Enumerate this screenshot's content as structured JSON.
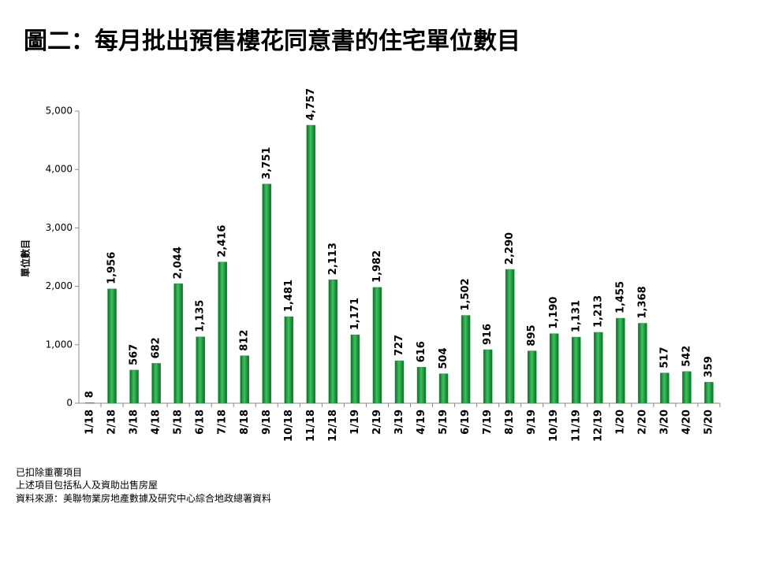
{
  "chart_data": {
    "type": "bar",
    "title": "圖二：每月批出預售樓花同意書的住宅單位數目",
    "ylabel": "單位數目",
    "categories": [
      "1/18",
      "2/18",
      "3/18",
      "4/18",
      "5/18",
      "6/18",
      "7/18",
      "8/18",
      "9/18",
      "10/18",
      "11/18",
      "12/18",
      "1/19",
      "2/19",
      "3/19",
      "4/19",
      "5/19",
      "6/19",
      "7/19",
      "8/19",
      "9/19",
      "10/19",
      "11/19",
      "12/19",
      "1/20",
      "2/20",
      "3/20",
      "4/20",
      "5/20"
    ],
    "values": [
      8,
      1956,
      567,
      682,
      2044,
      1135,
      2416,
      812,
      3751,
      1481,
      4757,
      2113,
      1171,
      1982,
      727,
      616,
      504,
      1502,
      916,
      2290,
      895,
      1190,
      1131,
      1213,
      1455,
      1368,
      517,
      542,
      359
    ],
    "value_labels": [
      "8",
      "1,956",
      "567",
      "682",
      "2,044",
      "1,135",
      "2,416",
      "812",
      "3,751",
      "1,481",
      "4,757",
      "2,113",
      "1,171",
      "1,982",
      "727",
      "616",
      "504",
      "1,502",
      "916",
      "2,290",
      "895",
      "1,190",
      "1,131",
      "1,213",
      "1,455",
      "1,368",
      "517",
      "542",
      "359"
    ],
    "color": "#1a9a3a",
    "ylim": [
      0,
      5000
    ],
    "yticks": [
      0,
      {
        "value": 1000,
        "label": "1,000"
      },
      {
        "value": 2000,
        "label": "2,000"
      },
      {
        "value": 3000,
        "label": "3,000"
      },
      {
        "value": 4000,
        "label": "4,000"
      },
      {
        "value": 5000,
        "label": "5,000"
      }
    ],
    "grid": false,
    "notes": [
      "已扣除重覆項目",
      "上述項目包括私人及資助出售房屋",
      "資料來源：美聯物業房地產數據及研究中心綜合地政總署資料"
    ]
  }
}
